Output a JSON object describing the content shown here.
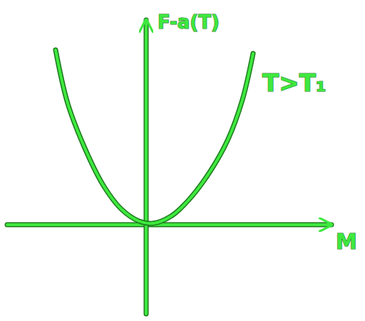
{
  "chart_data": {
    "type": "line",
    "x_label": "M",
    "y_label": "F-a(T)",
    "annotations": [
      "T>T₁"
    ],
    "x": [
      -1.27,
      -1.1,
      -0.85,
      -0.6,
      -0.35,
      -0.1,
      0.1,
      0.35,
      0.6,
      0.9,
      1.15,
      1.35,
      1.5
    ],
    "values": [
      2.45,
      1.7,
      1.05,
      0.55,
      0.22,
      0.05,
      0.02,
      0.12,
      0.35,
      0.75,
      1.2,
      1.75,
      2.4
    ],
    "color": "#3ee83e",
    "xlim": [
      -1.95,
      2.6
    ],
    "ylim": [
      -1.25,
      2.87
    ],
    "xticks": [],
    "yticks": [],
    "tick_labels": false,
    "grid": false
  }
}
